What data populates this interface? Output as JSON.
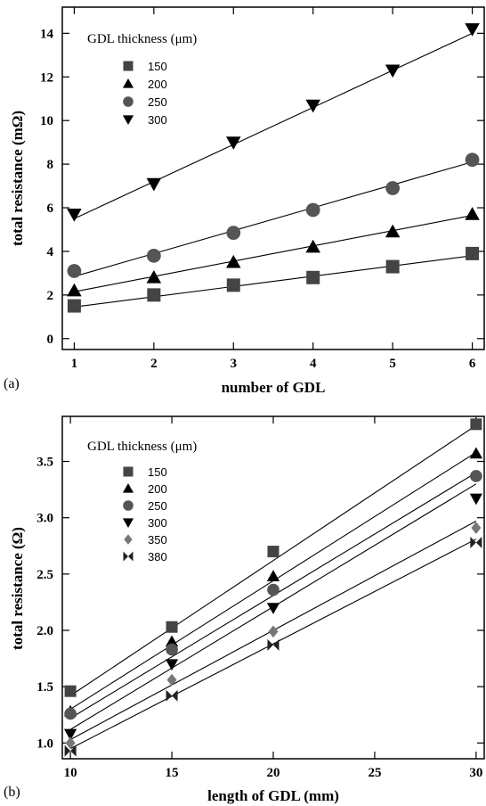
{
  "chart_data": [
    {
      "type": "scatter",
      "panel_label": "(a)",
      "xlabel": "number of GDL",
      "ylabel": "total resistance (mΩ)",
      "xlim": [
        0.85,
        6.15
      ],
      "ylim": [
        -0.5,
        15.2
      ],
      "xticks": [
        1,
        2,
        3,
        4,
        5,
        6
      ],
      "yticks": [
        0,
        2,
        4,
        6,
        8,
        10,
        12,
        14
      ],
      "legend_title": "GDL thickness (μm)",
      "legend_position": "top-left",
      "grid": false,
      "fit_lines": true,
      "series": [
        {
          "name": "150",
          "marker": "square",
          "x": [
            1,
            2,
            3,
            4,
            5,
            6
          ],
          "y": [
            1.5,
            2.0,
            2.45,
            2.8,
            3.3,
            3.9
          ],
          "fit": [
            1.45,
            1.92,
            2.39,
            2.86,
            3.33,
            3.8
          ]
        },
        {
          "name": "200",
          "marker": "triangle-up",
          "x": [
            1,
            2,
            3,
            4,
            5,
            6
          ],
          "y": [
            2.2,
            2.8,
            3.5,
            4.2,
            4.9,
            5.7
          ],
          "fit": [
            2.15,
            2.85,
            3.55,
            4.25,
            4.95,
            5.65
          ]
        },
        {
          "name": "250",
          "marker": "circle",
          "x": [
            1,
            2,
            3,
            4,
            5,
            6
          ],
          "y": [
            3.1,
            3.8,
            4.85,
            5.9,
            6.9,
            8.2
          ],
          "fit": [
            2.85,
            3.9,
            4.95,
            6.0,
            7.05,
            8.1
          ]
        },
        {
          "name": "300",
          "marker": "triangle-down",
          "x": [
            1,
            2,
            3,
            4,
            5,
            6
          ],
          "y": [
            5.7,
            7.1,
            9.0,
            10.7,
            12.3,
            14.2
          ],
          "fit": [
            5.5,
            7.2,
            8.9,
            10.6,
            12.3,
            14.0
          ]
        }
      ]
    },
    {
      "type": "scatter",
      "panel_label": "(b)",
      "xlabel": "length of GDL (mm)",
      "ylabel": "total resistance (Ω)",
      "xlim": [
        9.6,
        30.4
      ],
      "ylim": [
        0.86,
        3.9
      ],
      "xticks": [
        10,
        15,
        20,
        25,
        30
      ],
      "yticks": [
        1.0,
        1.5,
        2.0,
        2.5,
        3.0,
        3.5
      ],
      "ytick_labels": [
        "1.0",
        "1.5",
        "2.0",
        "2.5",
        "3.0",
        "3.5"
      ],
      "legend_title": "GDL thickness (μm)",
      "legend_position": "top-left",
      "grid": false,
      "fit_lines": true,
      "series": [
        {
          "name": "150",
          "marker": "square",
          "x": [
            10,
            15,
            20,
            30
          ],
          "y": [
            1.46,
            2.03,
            2.7,
            3.83
          ],
          "fit": [
            1.42,
            2.02,
            2.62,
            3.82
          ]
        },
        {
          "name": "200",
          "marker": "triangle-up",
          "x": [
            10,
            15,
            20,
            30
          ],
          "y": [
            1.28,
            1.9,
            2.48,
            3.57
          ],
          "fit": [
            1.3,
            1.87,
            2.44,
            3.58
          ]
        },
        {
          "name": "250",
          "marker": "circle",
          "x": [
            10,
            15,
            20,
            30
          ],
          "y": [
            1.26,
            1.83,
            2.36,
            3.37
          ],
          "fit": [
            1.22,
            1.765,
            2.31,
            3.4
          ]
        },
        {
          "name": "300",
          "marker": "triangle-down",
          "x": [
            10,
            15,
            20,
            30
          ],
          "y": [
            1.08,
            1.7,
            2.2,
            3.17
          ],
          "fit": [
            1.12,
            1.665,
            2.21,
            3.3
          ]
        },
        {
          "name": "350",
          "marker": "diamond",
          "x": [
            10,
            15,
            20,
            30
          ],
          "y": [
            1.0,
            1.56,
            1.99,
            2.91
          ],
          "fit": [
            1.03,
            1.515,
            2.0,
            2.97
          ]
        },
        {
          "name": "380",
          "marker": "bowtie",
          "x": [
            10,
            15,
            20,
            30
          ],
          "y": [
            0.93,
            1.42,
            1.87,
            2.78
          ],
          "fit": [
            0.95,
            1.415,
            1.88,
            2.81
          ]
        }
      ]
    }
  ]
}
